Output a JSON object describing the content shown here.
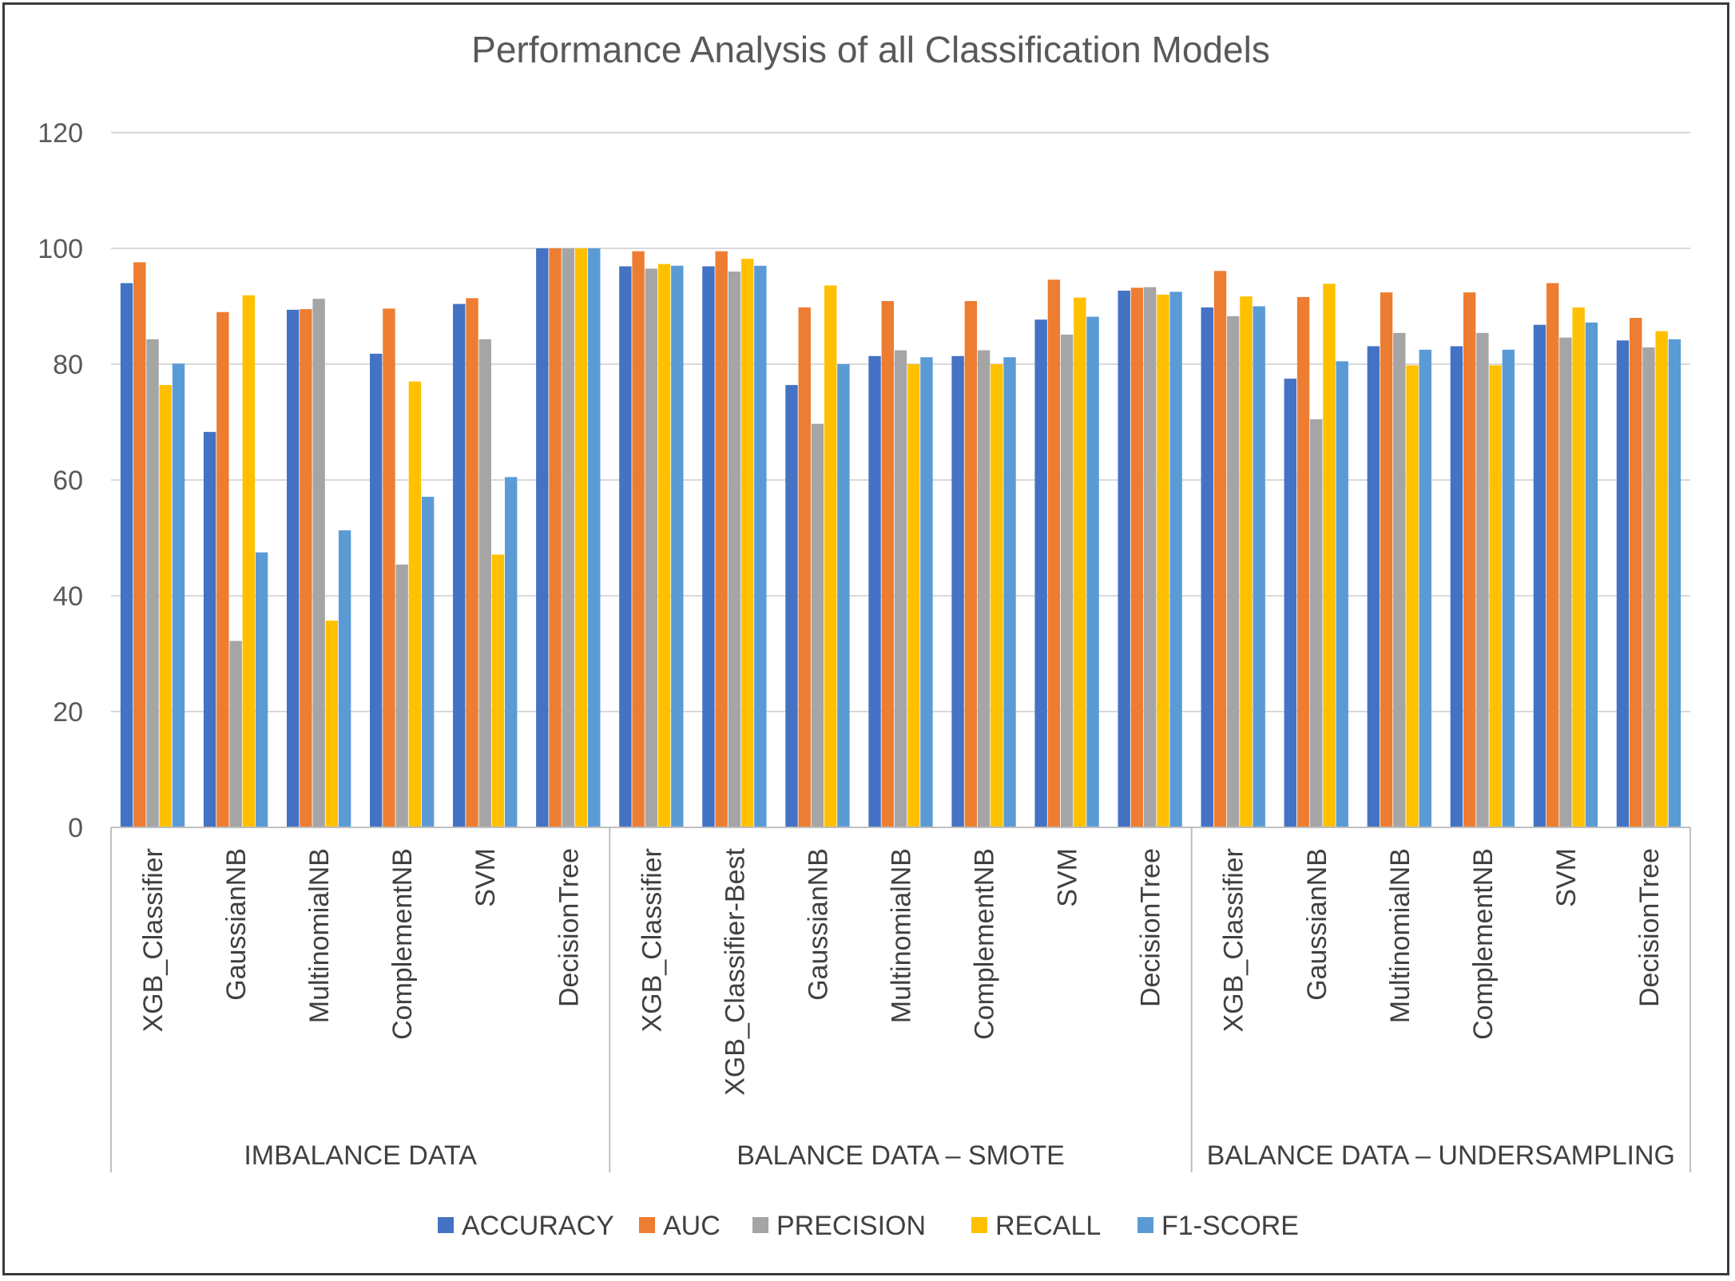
{
  "chart_data": {
    "type": "bar",
    "title": "Performance Analysis of all Classification Models",
    "xlabel": "",
    "ylabel": "",
    "ylim": [
      0,
      120
    ],
    "yticks": [
      0,
      20,
      40,
      60,
      80,
      100,
      120
    ],
    "grid": true,
    "legend_position": "bottom",
    "groups": [
      {
        "name": "IMBALANCE DATA",
        "categories": [
          "XGB_Classifier",
          "GaussianNB",
          "MultinomialNB",
          "ComplementNB",
          "SVM",
          "DecisionTree"
        ]
      },
      {
        "name": "BALANCE DATA – SMOTE",
        "categories": [
          "XGB_Classifier",
          "XGB_Classifier-Best",
          "GaussianNB",
          "MultinomialNB",
          "ComplementNB",
          "SVM",
          "DecisionTree"
        ]
      },
      {
        "name": "BALANCE DATA – UNDERSAMPLING",
        "categories": [
          "XGB_Classifier",
          "GaussianNB",
          "MultinomialNB",
          "ComplementNB",
          "SVM",
          "DecisionTree"
        ]
      }
    ],
    "series": [
      {
        "name": "ACCURACY",
        "color": "#4472c4",
        "values": [
          94,
          68.3,
          89.4,
          81.8,
          90.4,
          100,
          96.9,
          96.9,
          76.4,
          81.4,
          81.4,
          87.7,
          92.7,
          89.8,
          77.5,
          83.1,
          83.1,
          86.8,
          84.1
        ]
      },
      {
        "name": "AUC",
        "color": "#ed7d31",
        "values": [
          97.6,
          89,
          89.5,
          89.6,
          91.4,
          100,
          99.5,
          99.5,
          89.8,
          90.9,
          90.9,
          94.6,
          93.2,
          96.1,
          91.6,
          92.4,
          92.4,
          94,
          88
        ]
      },
      {
        "name": "PRECISION",
        "color": "#a5a5a5",
        "values": [
          84.3,
          32.2,
          91.3,
          45.4,
          84.3,
          100,
          96.5,
          96,
          69.7,
          82.4,
          82.4,
          85.1,
          93.3,
          88.3,
          70.5,
          85.4,
          85.4,
          84.6,
          82.9
        ]
      },
      {
        "name": "RECALL",
        "color": "#ffc000",
        "values": [
          76.4,
          91.9,
          35.7,
          77,
          47.1,
          100,
          97.3,
          98.2,
          93.6,
          80,
          80,
          91.5,
          92,
          91.7,
          93.9,
          79.8,
          79.8,
          89.8,
          85.7
        ]
      },
      {
        "name": "F1-SCORE",
        "color": "#5b9bd5",
        "values": [
          80.1,
          47.5,
          51.3,
          57.1,
          60.5,
          100,
          97,
          97,
          80,
          81.2,
          81.2,
          88.2,
          92.5,
          90,
          80.5,
          82.5,
          82.5,
          87.2,
          84.3
        ]
      }
    ]
  }
}
